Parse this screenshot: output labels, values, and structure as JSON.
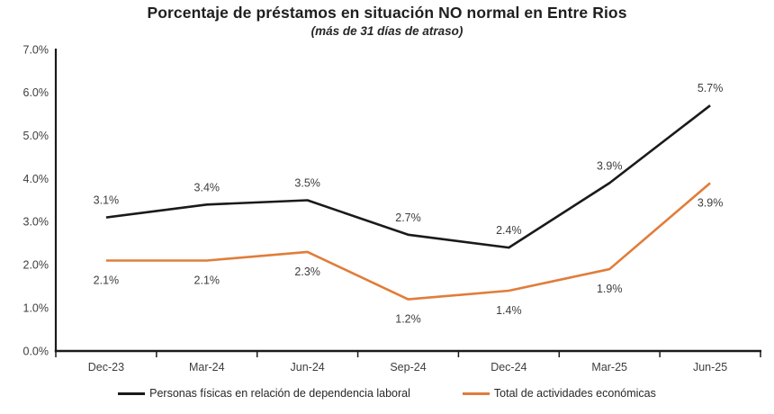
{
  "page": {
    "background": "#ffffff"
  },
  "chart_data": {
    "type": "line",
    "title": "Porcentaje de préstamos en situación NO normal en Entre Rios",
    "subtitle": "(más de 31 días de atraso)",
    "categories": [
      "Dec-23",
      "Mar-24",
      "Jun-24",
      "Sep-24",
      "Dec-24",
      "Mar-25",
      "Jun-25"
    ],
    "series": [
      {
        "name": "Personas físicas en relación de dependencia laboral",
        "color": "#1a1a1a",
        "values": [
          3.1,
          3.4,
          3.5,
          2.7,
          2.4,
          3.9,
          5.7
        ],
        "labels": [
          "3.1%",
          "3.4%",
          "3.5%",
          "2.7%",
          "2.4%",
          "3.9%",
          "5.7%"
        ],
        "label_position": "above"
      },
      {
        "name": "Total de actividades económicas",
        "color": "#E07D3A",
        "values": [
          2.1,
          2.1,
          2.3,
          1.2,
          1.4,
          1.9,
          3.9
        ],
        "labels": [
          "2.1%",
          "2.1%",
          "2.3%",
          "1.2%",
          "1.4%",
          "1.9%",
          "3.9%"
        ],
        "label_position": "below"
      }
    ],
    "ylim": [
      0,
      7
    ],
    "yticks": [
      "0.0%",
      "1.0%",
      "2.0%",
      "3.0%",
      "4.0%",
      "5.0%",
      "6.0%",
      "7.0%"
    ],
    "grid": false,
    "data_labels": true,
    "legend_position": "bottom",
    "axis_color": "#1a1a1a",
    "label_color": "#3d3d3d"
  }
}
